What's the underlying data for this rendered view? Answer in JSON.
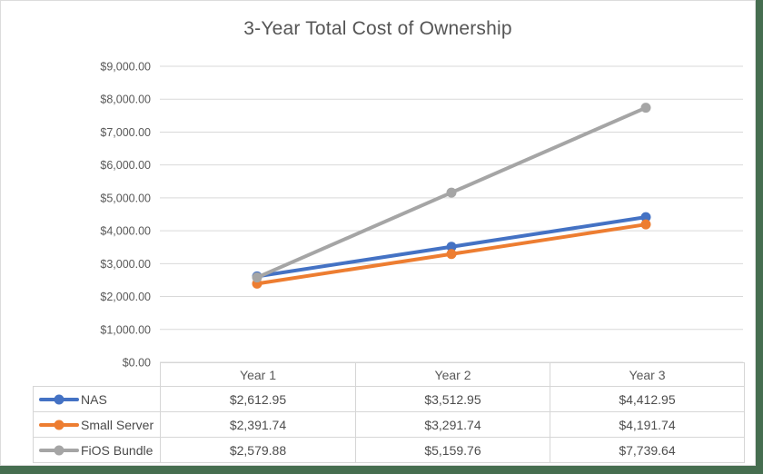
{
  "window": {
    "backdrop_color": "#466e50",
    "chart_background": "#ffffff"
  },
  "chart_data": {
    "type": "line",
    "title": "3-Year Total Cost of Ownership",
    "categories": [
      "Year 1",
      "Year 2",
      "Year 3"
    ],
    "series": [
      {
        "name": "NAS",
        "color": "#4472c4",
        "values": [
          2612.95,
          3512.95,
          4412.95
        ],
        "formatted": [
          "$2,612.95",
          "$3,512.95",
          "$4,412.95"
        ]
      },
      {
        "name": "Small Server",
        "color": "#ed7d31",
        "values": [
          2391.74,
          3291.74,
          4191.74
        ],
        "formatted": [
          "$2,391.74",
          "$3,291.74",
          "$4,191.74"
        ]
      },
      {
        "name": "FiOS Bundle",
        "color": "#a5a5a5",
        "values": [
          2579.88,
          5159.76,
          7739.64
        ],
        "formatted": [
          "$2,579.88",
          "$5,159.76",
          "$7,739.64"
        ]
      }
    ],
    "y_axis": {
      "min": 0,
      "max": 9000,
      "step": 1000,
      "tick_labels": [
        "$0.00",
        "$1,000.00",
        "$2,000.00",
        "$3,000.00",
        "$4,000.00",
        "$5,000.00",
        "$6,000.00",
        "$7,000.00",
        "$8,000.00",
        "$9,000.00"
      ]
    },
    "grid": true,
    "gridline_color": "#d9d9d9",
    "axis_text_color": "#595959",
    "legend_position": "data-table-left"
  }
}
